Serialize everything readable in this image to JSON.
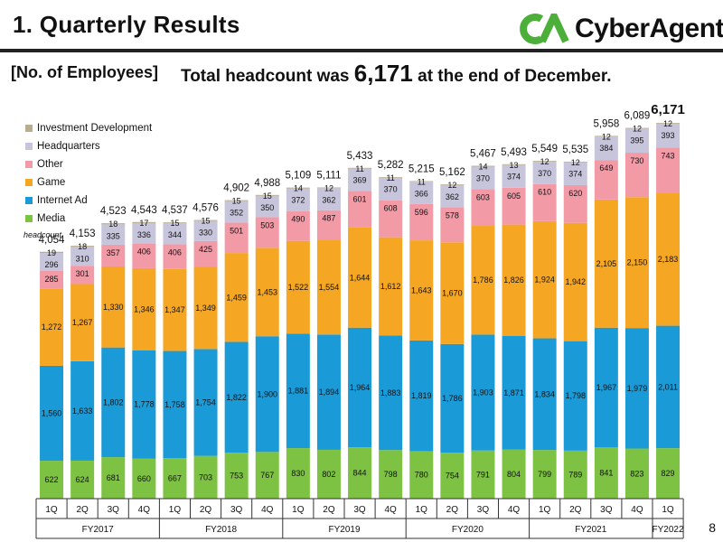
{
  "header": {
    "title": "1.  Quarterly Results",
    "logo_text": "CyberAgent"
  },
  "section_label": "[No. of Employees]",
  "headline": {
    "prefix": "Total headcount was ",
    "value": "6,171",
    "suffix": " at the end of December."
  },
  "page_number": "8",
  "legend": {
    "items": [
      {
        "label": "Investment Development",
        "color": "#b9ad8f"
      },
      {
        "label": "Headquarters",
        "color": "#c7c5dc"
      },
      {
        "label": "Other",
        "color": "#f39aa7"
      },
      {
        "label": "Game",
        "color": "#f5a623"
      },
      {
        "label": "Internet Ad",
        "color": "#1a9bd7"
      },
      {
        "label": "Media",
        "color": "#7dc242"
      }
    ],
    "unit": "headcount"
  },
  "chart_data": {
    "type": "bar",
    "stacked": true,
    "title": "No. of Employees",
    "ylabel": "headcount",
    "ylim": [
      0,
      6800
    ],
    "categories": [
      "1Q",
      "2Q",
      "3Q",
      "4Q",
      "1Q",
      "2Q",
      "3Q",
      "4Q",
      "1Q",
      "2Q",
      "3Q",
      "4Q",
      "1Q",
      "2Q",
      "3Q",
      "4Q",
      "1Q",
      "2Q",
      "3Q",
      "4Q",
      "1Q"
    ],
    "fiscal_years": [
      {
        "label": "FY2017",
        "quarters": 4
      },
      {
        "label": "FY2018",
        "quarters": 4
      },
      {
        "label": "FY2019",
        "quarters": 4
      },
      {
        "label": "FY2020",
        "quarters": 4
      },
      {
        "label": "FY2021",
        "quarters": 4
      },
      {
        "label": "FY2022",
        "quarters": 1
      }
    ],
    "totals": [
      4054,
      4153,
      4523,
      4543,
      4537,
      4576,
      4902,
      4988,
      5109,
      5111,
      5433,
      5282,
      5215,
      5162,
      5467,
      5493,
      5549,
      5535,
      5958,
      6089,
      6171
    ],
    "total_labels": [
      "4,054",
      "4,153",
      "4,523",
      "4,543",
      "4,537",
      "4,576",
      "4,902",
      "4,988",
      "5,109",
      "5,111",
      "5,433",
      "5,282",
      "5,215",
      "5,162",
      "5,467",
      "5,493",
      "5,549",
      "5,535",
      "5,958",
      "6,089",
      "6,171"
    ],
    "series": [
      {
        "name": "Media",
        "color": "#7dc242",
        "values": [
          622,
          624,
          681,
          660,
          667,
          703,
          753,
          767,
          830,
          802,
          844,
          798,
          780,
          754,
          791,
          804,
          799,
          789,
          841,
          823,
          829
        ],
        "labels": [
          "622",
          "624",
          "681",
          "660",
          "667",
          "703",
          "753",
          "767",
          "830",
          "802",
          "844",
          "798",
          "780",
          "754",
          "791",
          "804",
          "799",
          "789",
          "841",
          "823",
          "829"
        ]
      },
      {
        "name": "Internet Ad",
        "color": "#1a9bd7",
        "values": [
          1560,
          1633,
          1802,
          1778,
          1758,
          1754,
          1822,
          1900,
          1881,
          1894,
          1964,
          1883,
          1819,
          1786,
          1903,
          1871,
          1834,
          1798,
          1967,
          1979,
          2011
        ],
        "labels": [
          "1,560",
          "1,633",
          "1,802",
          "1,778",
          "1,758",
          "1,754",
          "1,822",
          "1,900",
          "1,881",
          "1,894",
          "1,964",
          "1,883",
          "1,819",
          "1,786",
          "1,903",
          "1,871",
          "1,834",
          "1,798",
          "1,967",
          "1,979",
          "2,011"
        ]
      },
      {
        "name": "Game",
        "color": "#f5a623",
        "values": [
          1272,
          1267,
          1330,
          1346,
          1347,
          1349,
          1459,
          1453,
          1522,
          1554,
          1644,
          1612,
          1643,
          1670,
          1786,
          1826,
          1924,
          1942,
          2105,
          2150,
          2183
        ],
        "labels": [
          "1,272",
          "1,267",
          "1,330",
          "1,346",
          "1,347",
          "1,349",
          "1,459",
          "1,453",
          "1,522",
          "1,554",
          "1,644",
          "1,612",
          "1,643",
          "1,670",
          "1,786",
          "1,826",
          "1,924",
          "1,942",
          "2,105",
          "2,150",
          "2,183"
        ]
      },
      {
        "name": "Other",
        "color": "#f39aa7",
        "values": [
          285,
          301,
          357,
          406,
          406,
          425,
          501,
          503,
          490,
          487,
          601,
          608,
          596,
          578,
          603,
          605,
          610,
          620,
          649,
          730,
          743
        ],
        "labels": [
          "285",
          "301",
          "357",
          "406",
          "406",
          "425",
          "501",
          "503",
          "490",
          "487",
          "601",
          "608",
          "596",
          "578",
          "603",
          "605",
          "610",
          "620",
          "649",
          "730",
          "743"
        ]
      },
      {
        "name": "Headquarters",
        "color": "#c7c5dc",
        "values": [
          296,
          310,
          335,
          336,
          344,
          330,
          352,
          350,
          372,
          362,
          369,
          370,
          366,
          362,
          370,
          374,
          370,
          374,
          384,
          395,
          393
        ],
        "labels": [
          "296",
          "310",
          "335",
          "336",
          "344",
          "330",
          "352",
          "350",
          "372",
          "362",
          "369",
          "370",
          "366",
          "362",
          "370",
          "374",
          "370",
          "374",
          "384",
          "395",
          "393"
        ]
      },
      {
        "name": "Investment Development",
        "color": "#b9ad8f",
        "values": [
          19,
          18,
          18,
          17,
          15,
          15,
          15,
          15,
          14,
          12,
          11,
          11,
          11,
          12,
          14,
          13,
          12,
          12,
          12,
          12,
          12
        ],
        "labels": [
          "19",
          "18",
          "18",
          "17",
          "15",
          "15",
          "15",
          "15",
          "14",
          "12",
          "11",
          "11",
          "11",
          "12",
          "14",
          "13",
          "12",
          "12",
          "12",
          "12",
          "12"
        ]
      }
    ]
  }
}
